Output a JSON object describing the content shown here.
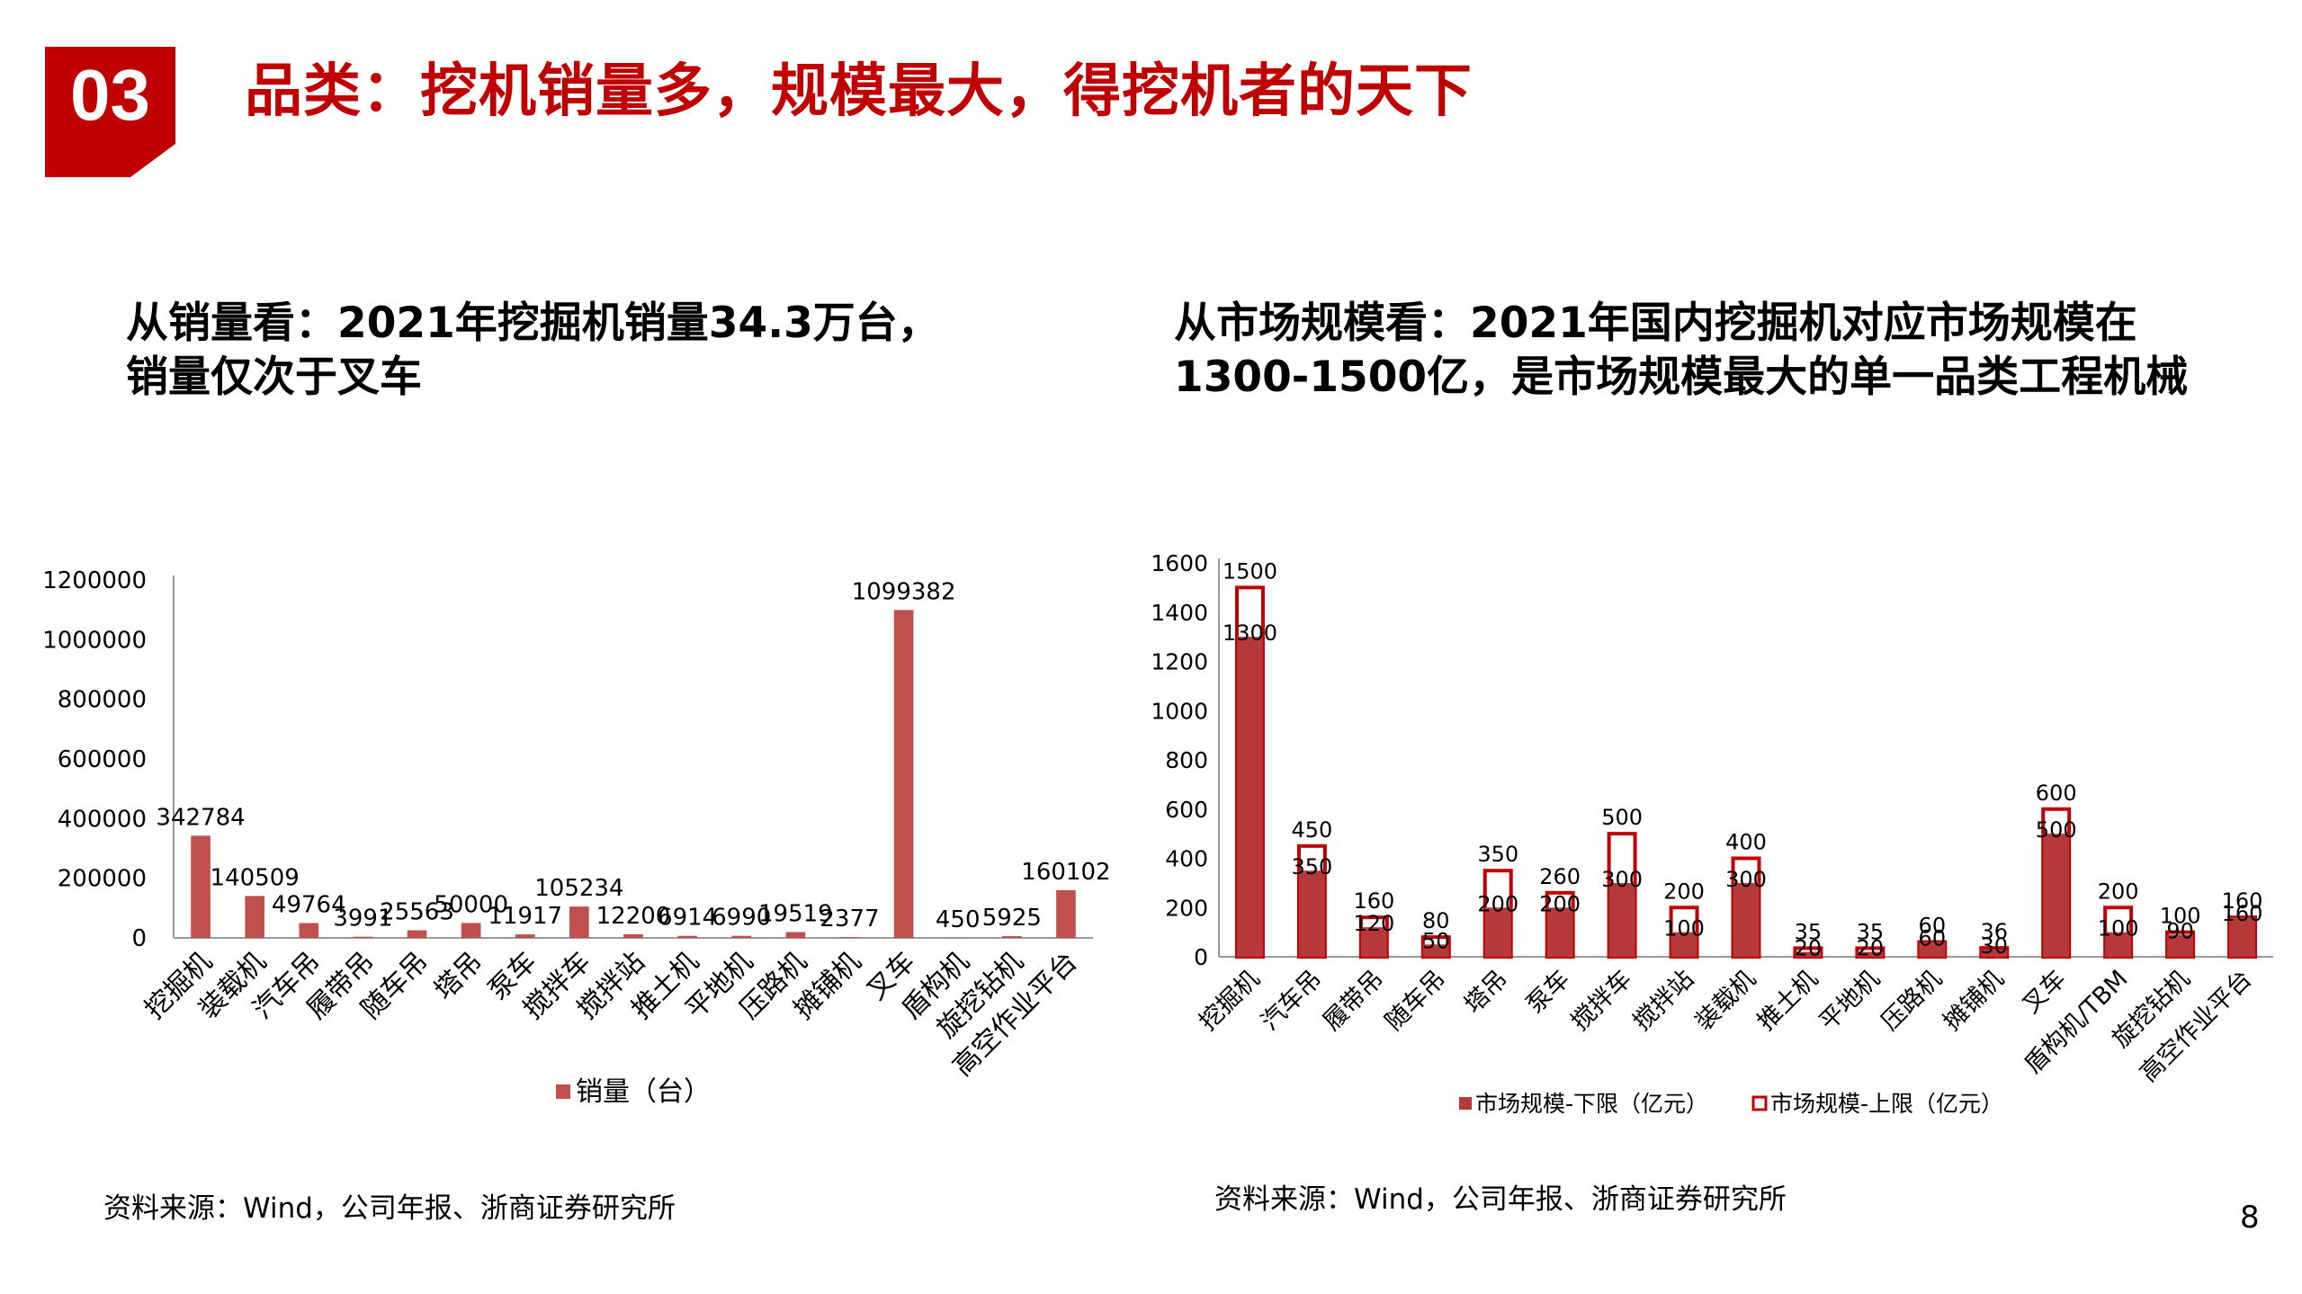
{
  "header": {
    "section_number": "03",
    "title": "品类：挖机销量多，规模最大，得挖机者的天下"
  },
  "left_panel": {
    "heading_line1": "从销量看：2021年挖掘机销量34.3万台，",
    "heading_line2": "销量仅次于叉车",
    "source": "资料来源：Wind，公司年报、浙商证券研究所"
  },
  "right_panel": {
    "heading_line1": "从市场规模看：2021年国内挖掘机对应市场规模在",
    "heading_line2": "1300-1500亿，是市场规模最大的单一品类工程机械",
    "source": "资料来源：Wind，公司年报、浙商证券研究所"
  },
  "page_number": "8",
  "colors": {
    "accent": "#C00000",
    "bar_left": "#C0504D",
    "bar_right_fill": "#B5393B",
    "bar_right_outline": "#C00000"
  },
  "chart_data": [
    {
      "type": "bar",
      "categories": [
        "挖掘机",
        "装载机",
        "汽车吊",
        "履带吊",
        "随车吊",
        "塔吊",
        "泵车",
        "搅拌车",
        "搅拌站",
        "推土机",
        "平地机",
        "压路机",
        "摊铺机",
        "叉车",
        "盾构机",
        "旋挖钻机",
        "高空作业平台"
      ],
      "series": [
        {
          "name": "销量（台）",
          "values": [
            342784,
            140509,
            49764,
            3991,
            25563,
            50000,
            11917,
            105234,
            12200,
            6914,
            6990,
            19519,
            2377,
            1099382,
            450,
            5925,
            160102
          ]
        }
      ],
      "data_labels": [
        "342784",
        "140509",
        "49764",
        "3991",
        "25563",
        "50000",
        "11917",
        "105234",
        "12200",
        "6914",
        "6990",
        "19519",
        "2377",
        "1099382",
        "450",
        "5925",
        "160102"
      ],
      "yticks": [
        "0",
        "200000",
        "400000",
        "600000",
        "800000",
        "1000000",
        "1200000"
      ],
      "ylim": [
        0,
        1200000
      ],
      "legend_position": "bottom"
    },
    {
      "type": "bar",
      "categories": [
        "挖掘机",
        "汽车吊",
        "履带吊",
        "随车吊",
        "塔吊",
        "泵车",
        "搅拌车",
        "搅拌站",
        "装载机",
        "推土机",
        "平地机",
        "压路机",
        "摊铺机",
        "叉车",
        "盾构机/TBM",
        "旋挖钻机",
        "高空作业平台"
      ],
      "series": [
        {
          "name": "市场规模-下限（亿元）",
          "values": [
            1300,
            350,
            120,
            50,
            200,
            200,
            300,
            100,
            300,
            20,
            20,
            60,
            30,
            500,
            100,
            90,
            160
          ],
          "labels": [
            "1300",
            "350",
            "120",
            "50",
            "200",
            "200",
            "300",
            "100",
            "300",
            "20",
            "20",
            "60",
            "30",
            "500",
            "100",
            "90",
            "160"
          ]
        },
        {
          "name": "市场规模-上限（亿元）",
          "values": [
            1500,
            450,
            160,
            80,
            350,
            260,
            500,
            200,
            400,
            35,
            35,
            60,
            36,
            600,
            200,
            100,
            160
          ],
          "labels": [
            "1500",
            "450",
            "160",
            "80",
            "350",
            "260",
            "500",
            "200",
            "400",
            "35",
            "35",
            "60",
            "36",
            "600",
            "200",
            "100",
            "160"
          ]
        }
      ],
      "yticks": [
        "0",
        "200",
        "400",
        "600",
        "800",
        "1000",
        "1200",
        "1400",
        "1600"
      ],
      "ylim": [
        0,
        1600
      ],
      "legend_position": "bottom"
    }
  ]
}
